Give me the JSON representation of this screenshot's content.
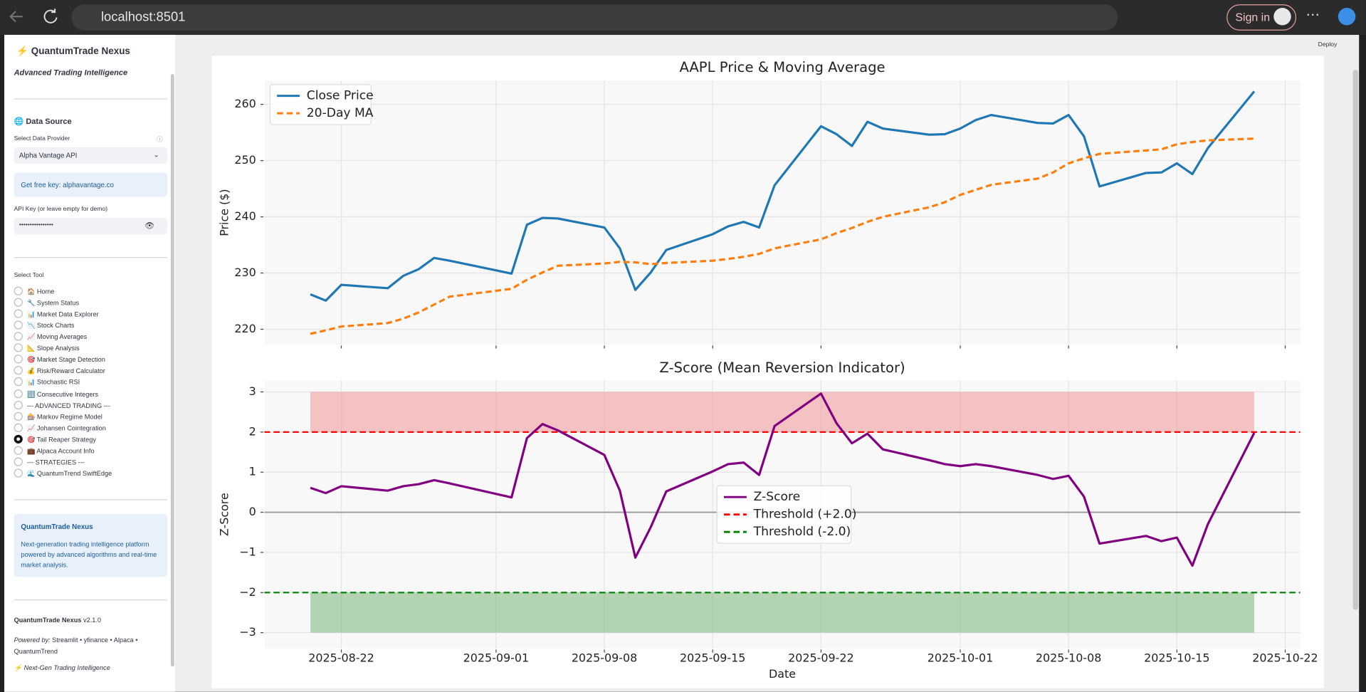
{
  "browser": {
    "url": "localhost:8501",
    "sign_in": "Sign in"
  },
  "app": {
    "deploy": "Deploy"
  },
  "sidebar": {
    "title": "QuantumTrade Nexus",
    "subtitle": "Advanced Trading Intelligence",
    "data_source": "🌐 Data Source",
    "provider_label": "Select Data Provider",
    "provider_value": "Alpha Vantage API",
    "key_info": "Get free key: alphavantage.co",
    "api_label": "API Key (or leave empty for demo)",
    "api_value": "••••••••••••••••",
    "tool_label": "Select Tool",
    "tools": [
      "🏠 Home",
      "🔧 System Status",
      "📊 Market Data Explorer",
      "📉 Stock Charts",
      "📈 Moving Averages",
      "📐 Slope Analysis",
      "🎯 Market Stage Detection",
      "💰 Risk/Reward Calculator",
      "📊 Stochastic RSI",
      "🔢 Consecutive Integers",
      "--- ADVANCED TRADING ---",
      "🎰 Markov Regime Model",
      "📈 Johansen Cointegration",
      "🎯 Tail Reaper Strategy",
      "💼 Alpaca Account Info",
      "--- STRATEGIES ---",
      "🌊 QuantumTrend SwiftEdge"
    ],
    "selected": 13,
    "info_title": "QuantumTrade Nexus",
    "info_text": "Next-generation trading intelligence platform powered by advanced algorithms and real-time market analysis.",
    "footer_name": "QuantumTrade Nexus",
    "footer_version": "v2.1.0",
    "powered_label": "Powered by:",
    "powered_text": "Streamlit • yfinance • Alpaca • QuantumTrend",
    "tagline": "Next-Gen Trading Intelligence"
  },
  "chart_data": [
    {
      "type": "line",
      "title": "AAPL Price & Moving Average",
      "ylabel": "Price ($)",
      "x": [
        "2025-08-20",
        "2025-08-21",
        "2025-08-22",
        "2025-08-25",
        "2025-08-26",
        "2025-08-27",
        "2025-08-28",
        "2025-08-29",
        "2025-09-02",
        "2025-09-03",
        "2025-09-04",
        "2025-09-05",
        "2025-09-08",
        "2025-09-09",
        "2025-09-10",
        "2025-09-11",
        "2025-09-12",
        "2025-09-15",
        "2025-09-16",
        "2025-09-17",
        "2025-09-18",
        "2025-09-19",
        "2025-09-22",
        "2025-09-23",
        "2025-09-24",
        "2025-09-25",
        "2025-09-26",
        "2025-09-29",
        "2025-09-30",
        "2025-10-01",
        "2025-10-02",
        "2025-10-03",
        "2025-10-06",
        "2025-10-07",
        "2025-10-08",
        "2025-10-09",
        "2025-10-10",
        "2025-10-13",
        "2025-10-14",
        "2025-10-15",
        "2025-10-16",
        "2025-10-17",
        "2025-10-20"
      ],
      "series": [
        {
          "name": "Close Price",
          "color": "#1f77b4",
          "style": "solid",
          "values": [
            226.2,
            225.1,
            227.9,
            227.3,
            229.5,
            230.7,
            232.7,
            232.2,
            229.9,
            238.6,
            239.8,
            239.7,
            238.1,
            234.4,
            227.0,
            230.1,
            234.1,
            236.9,
            238.3,
            239.1,
            238.1,
            245.6,
            256.1,
            254.7,
            252.6,
            256.9,
            255.7,
            254.6,
            254.7,
            255.7,
            257.2,
            258.1,
            256.7,
            256.6,
            258.1,
            254.3,
            245.4,
            247.8,
            247.9,
            249.5,
            247.6,
            252.2,
            262.3
          ]
        },
        {
          "name": "20-Day MA",
          "color": "#ff7f0e",
          "style": "dashed",
          "values": [
            219.2,
            219.8,
            220.5,
            221.1,
            221.9,
            223.0,
            224.4,
            225.8,
            227.2,
            228.8,
            230.1,
            231.3,
            231.7,
            232.0,
            231.9,
            231.6,
            231.8,
            232.2,
            232.5,
            232.9,
            233.4,
            234.4,
            236.0,
            237.1,
            238.0,
            239.1,
            240.0,
            241.7,
            242.6,
            243.9,
            244.8,
            245.7,
            246.8,
            247.9,
            249.5,
            250.4,
            251.2,
            251.8,
            252.0,
            252.9,
            253.3,
            253.6,
            253.9
          ]
        }
      ],
      "xlim": [
        "2025-08-17",
        "2025-10-23"
      ],
      "xticks": [
        "2025-08-22",
        "2025-09-01",
        "2025-09-08",
        "2025-09-15",
        "2025-09-22",
        "2025-10-01",
        "2025-10-08",
        "2025-10-15",
        "2025-10-22"
      ],
      "ylim": [
        217.2,
        264.3
      ],
      "yticks": [
        220,
        230,
        240,
        250,
        260
      ],
      "grid": true,
      "legend": "upper left"
    },
    {
      "type": "line",
      "title": "Z-Score (Mean Reversion Indicator)",
      "ylabel": "Z-Score",
      "xlabel": "Date",
      "x": [
        "2025-08-20",
        "2025-08-21",
        "2025-08-22",
        "2025-08-25",
        "2025-08-26",
        "2025-08-27",
        "2025-08-28",
        "2025-08-29",
        "2025-09-02",
        "2025-09-03",
        "2025-09-04",
        "2025-09-05",
        "2025-09-08",
        "2025-09-09",
        "2025-09-10",
        "2025-09-11",
        "2025-09-12",
        "2025-09-15",
        "2025-09-16",
        "2025-09-17",
        "2025-09-18",
        "2025-09-19",
        "2025-09-22",
        "2025-09-23",
        "2025-09-24",
        "2025-09-25",
        "2025-09-26",
        "2025-09-29",
        "2025-09-30",
        "2025-10-01",
        "2025-10-02",
        "2025-10-03",
        "2025-10-06",
        "2025-10-07",
        "2025-10-08",
        "2025-10-09",
        "2025-10-10",
        "2025-10-13",
        "2025-10-14",
        "2025-10-15",
        "2025-10-16",
        "2025-10-17",
        "2025-10-20"
      ],
      "series": [
        {
          "name": "Z-Score",
          "color": "#800080",
          "style": "solid",
          "values": [
            0.61,
            0.48,
            0.65,
            0.54,
            0.65,
            0.7,
            0.8,
            0.72,
            0.37,
            1.85,
            2.2,
            2.04,
            1.43,
            0.54,
            -1.13,
            -0.37,
            0.52,
            1.02,
            1.2,
            1.24,
            0.93,
            2.15,
            2.96,
            2.22,
            1.72,
            1.96,
            1.57,
            1.3,
            1.2,
            1.15,
            1.2,
            1.15,
            0.93,
            0.83,
            0.91,
            0.39,
            -0.78,
            -0.59,
            -0.72,
            -0.63,
            -1.33,
            -0.3,
            1.98
          ]
        }
      ],
      "hlines": [
        {
          "name": "Threshold (+2.0)",
          "value": 2,
          "color": "#ff0000",
          "style": "dashed"
        },
        {
          "name": "Threshold (-2.0)",
          "value": -2,
          "color": "#008000",
          "style": "dashed"
        },
        {
          "value": 0,
          "color": "#999999",
          "style": "solid"
        }
      ],
      "bands": [
        {
          "from": 2,
          "to": 3,
          "color": "#f08080"
        },
        {
          "from": -3,
          "to": -2,
          "color": "#5fa85f"
        }
      ],
      "xlim": [
        "2025-08-17",
        "2025-10-23"
      ],
      "xticks": [
        "2025-08-22",
        "2025-09-01",
        "2025-09-08",
        "2025-09-15",
        "2025-09-22",
        "2025-10-01",
        "2025-10-08",
        "2025-10-15",
        "2025-10-22"
      ],
      "ylim": [
        -3.41,
        3.3
      ],
      "yticks": [
        {
          "value": -3,
          "label": "−3"
        },
        {
          "value": -2,
          "label": "−2"
        },
        {
          "value": -1,
          "label": "−1"
        },
        0,
        1,
        2,
        3
      ],
      "grid": true,
      "legend": "center"
    }
  ]
}
